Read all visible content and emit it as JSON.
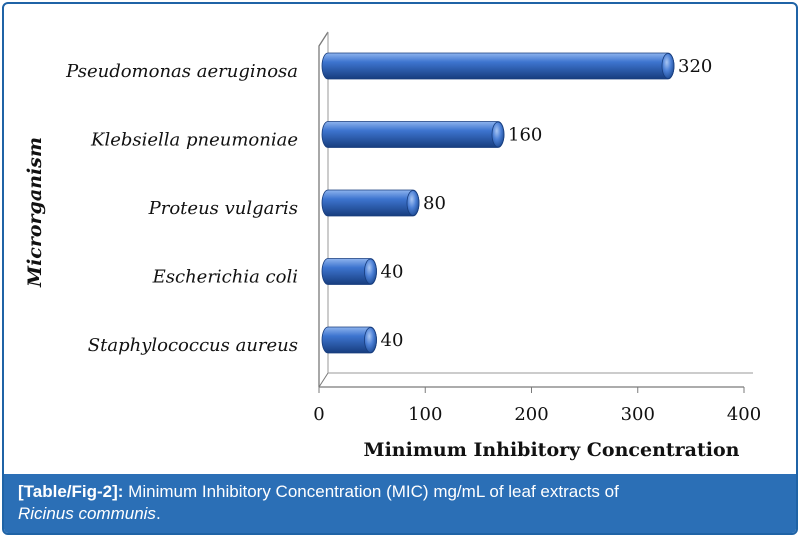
{
  "chart_data": {
    "type": "bar",
    "orientation": "horizontal",
    "categories": [
      "Pseudomonas aeruginosa",
      "Klebsiella pneumoniae",
      "Proteus vulgaris",
      "Escherichia coli",
      "Staphylococcus aureus"
    ],
    "values": [
      320,
      160,
      80,
      40,
      40
    ],
    "data_labels": [
      "320",
      "160",
      "80",
      "40",
      "40"
    ],
    "xlabel": "Minimum Inhibitory Concentration",
    "ylabel": "Microrganism",
    "xlim": [
      0,
      400
    ],
    "xticks": [
      "0",
      "100",
      "200",
      "300",
      "400"
    ],
    "bar_color": "#2f62b8",
    "grid": false,
    "legend": "none"
  },
  "caption": {
    "tag": "[Table/Fig-2]:",
    "text": " Minimum Inhibitory Concentration (MIC) mg/mL of leaf extracts of ",
    "species": "Ricinus communis",
    "end": ".",
    "color": "#2b6fb6"
  }
}
